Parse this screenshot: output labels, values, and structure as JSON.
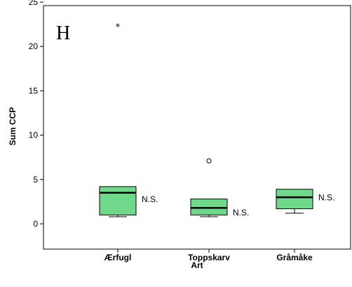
{
  "chart_data": {
    "type": "boxplot",
    "panel_letter": "H",
    "xlabel": "Art",
    "ylabel": "Sum CCP",
    "ylim": [
      -1.5,
      26
    ],
    "yticks": [
      0,
      5,
      10,
      15,
      20,
      25
    ],
    "grid": false,
    "box_color": "#6fd88a",
    "categories": [
      "Ærfugl",
      "Toppskarv",
      "Gråmåke"
    ],
    "boxes": [
      {
        "category": "Ærfugl",
        "whisker_low": 0.8,
        "q1": 1.0,
        "median": 3.5,
        "q3": 4.2,
        "whisker_high": 4.2,
        "outliers": [],
        "extremes": [
          22.3
        ],
        "annotation": "N.S."
      },
      {
        "category": "Toppskarv",
        "whisker_low": 0.8,
        "q1": 1.0,
        "median": 1.8,
        "q3": 2.8,
        "whisker_high": 2.8,
        "outliers": [
          7.1
        ],
        "extremes": [],
        "annotation": "N.S."
      },
      {
        "category": "Gråmåke",
        "whisker_low": 1.2,
        "q1": 1.7,
        "median": 3.0,
        "q3": 3.9,
        "whisker_high": 3.9,
        "outliers": [],
        "extremes": [],
        "annotation": "N.S."
      }
    ]
  }
}
